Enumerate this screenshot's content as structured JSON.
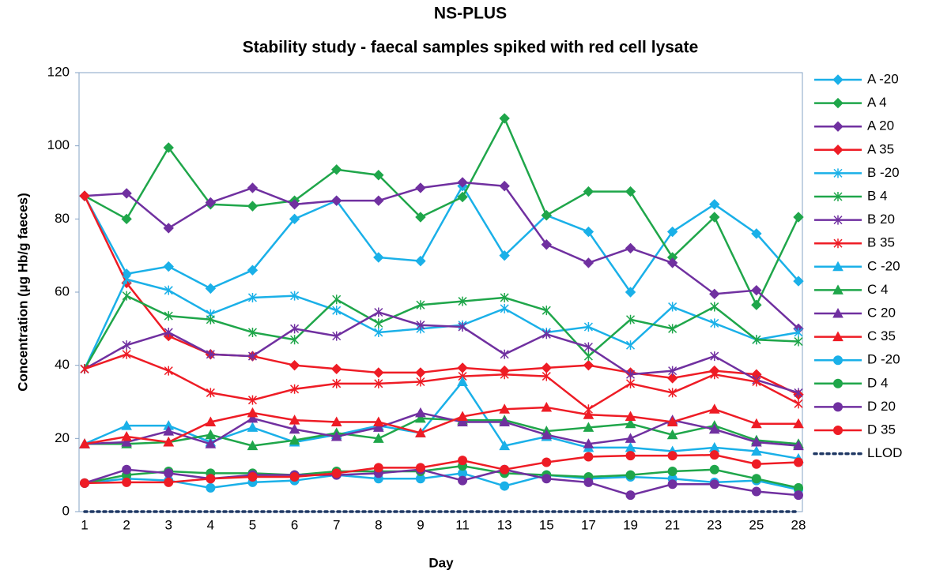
{
  "chart_data": {
    "type": "line",
    "title": "NS-PLUS",
    "subtitle": "Stability study - faecal samples spiked with red cell lysate",
    "x_label": "Day",
    "y_label": "Concentration (µg Hb/g faeces)",
    "categories": [
      "1",
      "2",
      "3",
      "4",
      "5",
      "6",
      "7",
      "8",
      "9",
      "11",
      "13",
      "15",
      "17",
      "19",
      "21",
      "23",
      "25",
      "28"
    ],
    "ylim": [
      0,
      120
    ],
    "yticks": [
      0,
      20,
      40,
      60,
      80,
      100,
      120
    ],
    "grid": false,
    "legend": "right",
    "series": [
      {
        "name": "A -20",
        "color": "#1ab0e8",
        "marker": "diamond",
        "values": [
          86.3,
          65,
          67,
          61,
          66,
          80,
          85,
          69.5,
          68.5,
          89,
          70,
          81,
          76.5,
          60,
          76.5,
          84,
          76,
          63
        ]
      },
      {
        "name": "A 4",
        "color": "#1fa64a",
        "marker": "diamond",
        "values": [
          86.3,
          80,
          99.5,
          84,
          83.5,
          85,
          93.5,
          92,
          80.5,
          86,
          107.5,
          81,
          87.5,
          87.5,
          69.5,
          80.5,
          56.5,
          80.5
        ]
      },
      {
        "name": "A 20",
        "color": "#7030a0",
        "marker": "diamond",
        "values": [
          86.3,
          87,
          77.5,
          84.5,
          88.5,
          84,
          85,
          85,
          88.5,
          90,
          89,
          73,
          68,
          72,
          68,
          59.5,
          60.5,
          50
        ]
      },
      {
        "name": "A 35",
        "color": "#ee1c25",
        "marker": "diamond",
        "values": [
          86.3,
          62.5,
          48,
          43,
          42.5,
          40,
          39,
          38,
          38,
          39.3,
          38.5,
          39.3,
          40,
          38,
          36.5,
          38.5,
          37.5,
          32
        ]
      },
      {
        "name": "B -20",
        "color": "#1ab0e8",
        "marker": "asterisk",
        "values": [
          39,
          63.5,
          60.5,
          54,
          58.5,
          59,
          55,
          49,
          50,
          51,
          55.5,
          49,
          50.5,
          45.5,
          56,
          51.5,
          47,
          49
        ]
      },
      {
        "name": "B 4",
        "color": "#1fa64a",
        "marker": "asterisk",
        "values": [
          39,
          59,
          53.5,
          52.5,
          49,
          47,
          58,
          51.5,
          56.5,
          57.5,
          58.5,
          55,
          42.5,
          52.5,
          50,
          56,
          47,
          46.5
        ]
      },
      {
        "name": "B 20",
        "color": "#7030a0",
        "marker": "asterisk",
        "values": [
          39,
          45.5,
          49,
          43,
          42.5,
          50,
          48,
          54.5,
          51,
          50.5,
          43,
          48.5,
          45,
          37.5,
          38.5,
          42.5,
          36,
          32.5
        ]
      },
      {
        "name": "B 35",
        "color": "#ee1c25",
        "marker": "asterisk",
        "values": [
          39,
          43,
          38.5,
          32.5,
          30.5,
          33.5,
          35,
          35,
          35.5,
          37,
          37.5,
          37,
          28,
          35,
          32.5,
          37.5,
          35.5,
          29.5
        ]
      },
      {
        "name": "C -20",
        "color": "#1ab0e8",
        "marker": "triangle",
        "values": [
          18.5,
          23.5,
          23.5,
          19,
          23,
          19,
          21,
          23.5,
          21.5,
          35.5,
          18,
          20.5,
          17.5,
          17.5,
          16.5,
          17.5,
          16.5,
          14.5
        ]
      },
      {
        "name": "C 4",
        "color": "#1fa64a",
        "marker": "triangle",
        "values": [
          18.5,
          18.5,
          19,
          21,
          18,
          19.5,
          21.5,
          20,
          25.5,
          25,
          25,
          22,
          23,
          24,
          21,
          23.5,
          19.5,
          18.5
        ]
      },
      {
        "name": "C 20",
        "color": "#7030a0",
        "marker": "triangle",
        "values": [
          18.5,
          19,
          22,
          18.5,
          25.5,
          22.5,
          20.5,
          23,
          27,
          24.5,
          24.5,
          21,
          18.5,
          20,
          25,
          22.5,
          19,
          18
        ]
      },
      {
        "name": "C 35",
        "color": "#ee1c25",
        "marker": "triangle",
        "values": [
          18.5,
          20.5,
          19,
          24.5,
          27,
          25,
          24.5,
          24.5,
          21.5,
          26,
          28,
          28.5,
          26.5,
          26,
          24.5,
          28,
          24,
          24
        ]
      },
      {
        "name": "D -20",
        "color": "#1ab0e8",
        "marker": "circle",
        "values": [
          7.8,
          9,
          8.5,
          6.5,
          8,
          8.5,
          10,
          9,
          9,
          10.5,
          7,
          10,
          9,
          9.5,
          9,
          8,
          8.5,
          6
        ]
      },
      {
        "name": "D 4",
        "color": "#1fa64a",
        "marker": "circle",
        "values": [
          7.8,
          10,
          11,
          10.5,
          10.5,
          10,
          11,
          11,
          11,
          12.5,
          10.5,
          10,
          9.5,
          10,
          11,
          11.5,
          9,
          6.5
        ]
      },
      {
        "name": "D 20",
        "color": "#7030a0",
        "marker": "circle",
        "values": [
          7.8,
          11.5,
          10.5,
          9,
          10,
          10,
          10,
          10.5,
          11.5,
          8.5,
          11.5,
          9,
          8,
          4.5,
          7.5,
          7.5,
          5.5,
          4.5
        ]
      },
      {
        "name": "D 35",
        "color": "#ee1c25",
        "marker": "circle",
        "values": [
          7.8,
          8,
          8,
          9,
          9.5,
          9.5,
          10.5,
          12,
          12,
          14,
          11.5,
          13.5,
          15,
          15.3,
          15.3,
          15.5,
          13,
          13.5
        ]
      },
      {
        "name": "LLOD",
        "color": "#1f3864",
        "marker": "none",
        "dash": "dotted",
        "values": [
          0,
          0,
          0,
          0,
          0,
          0,
          0,
          0,
          0,
          0,
          0,
          0,
          0,
          0,
          0,
          0,
          0,
          0
        ]
      }
    ]
  }
}
